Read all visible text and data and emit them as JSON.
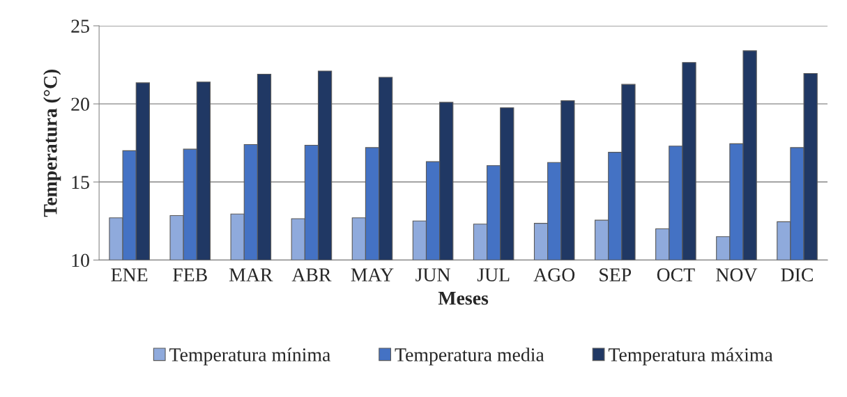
{
  "chart_data": {
    "type": "bar",
    "xlabel": "Meses",
    "ylabel": "Temperatura (°C)",
    "categories": [
      "ENE",
      "FEB",
      "MAR",
      "ABR",
      "MAY",
      "JUN",
      "JUL",
      "AGO",
      "SEP",
      "OCT",
      "NOV",
      "DIC"
    ],
    "series": [
      {
        "name": "Temperatura mínima",
        "color": "#8faadc",
        "values": [
          12.7,
          12.85,
          12.95,
          12.65,
          12.7,
          12.5,
          12.3,
          12.35,
          12.55,
          12.0,
          11.5,
          12.45
        ]
      },
      {
        "name": "Temperatura media",
        "color": "#4472c4",
        "values": [
          17.0,
          17.1,
          17.4,
          17.35,
          17.2,
          16.3,
          16.05,
          16.25,
          16.9,
          17.3,
          17.45,
          17.2
        ]
      },
      {
        "name": "Temperatura máxima",
        "color": "#203864",
        "values": [
          21.35,
          21.4,
          21.9,
          22.1,
          21.7,
          20.1,
          19.75,
          20.2,
          21.25,
          22.65,
          23.4,
          21.95
        ]
      }
    ],
    "ylim": [
      10,
      25
    ],
    "yticks": [
      10,
      15,
      20,
      25
    ],
    "grid": "y",
    "legend": "bottom"
  }
}
